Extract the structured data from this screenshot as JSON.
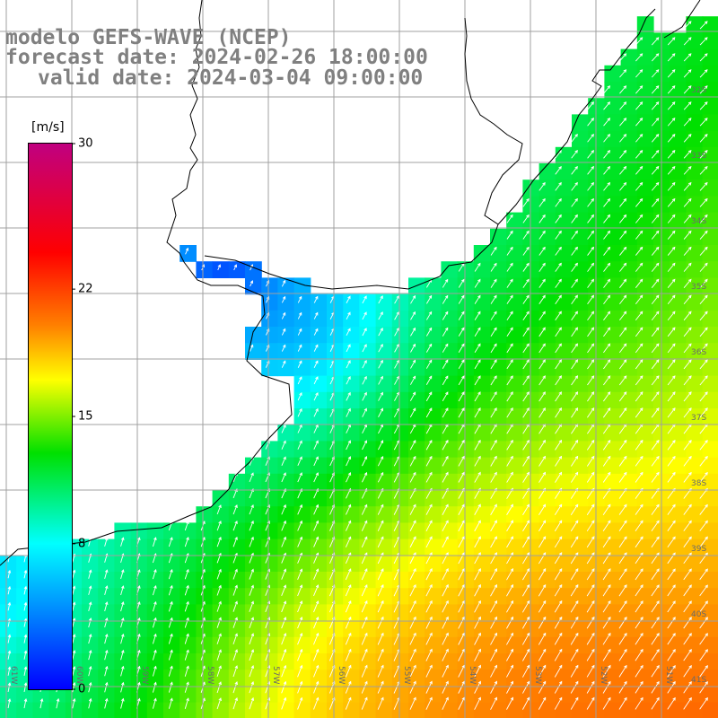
{
  "header": {
    "line1": "modelo GEFS-WAVE (NCEP)",
    "line2": "forecast date: 2024-02-26 18:00:00",
    "line3": "valid date: 2024-03-04 09:00:00"
  },
  "colorbar": {
    "unit": "[m/s]",
    "min": 0,
    "max": 30,
    "ticks": [
      {
        "value": 30,
        "label": "30"
      },
      {
        "value": 22,
        "label": "22"
      },
      {
        "value": 15,
        "label": "15"
      },
      {
        "value": 8,
        "label": "8"
      },
      {
        "value": 0,
        "label": "0"
      }
    ],
    "colors": [
      "#0000ff",
      "#00a0ff",
      "#00ffff",
      "#00e000",
      "#ffff00",
      "#ff8000",
      "#ff0000",
      "#c00080"
    ]
  },
  "grid": {
    "lat_labels": [
      "32S",
      "33S",
      "34S",
      "35S",
      "36S",
      "37S",
      "38S",
      "39S",
      "40S",
      "41S"
    ],
    "lon_labels": [
      "61W",
      "60W",
      "59W",
      "58W",
      "57W",
      "56W",
      "55W",
      "54W",
      "53W",
      "52W",
      "51W"
    ]
  },
  "map": {
    "quantity": "wind speed and direction",
    "land_color": "#ffffff",
    "coast_color": "#000000",
    "grid_color": "#a0a0a0",
    "wind_arrow_color": "#ffffff"
  }
}
